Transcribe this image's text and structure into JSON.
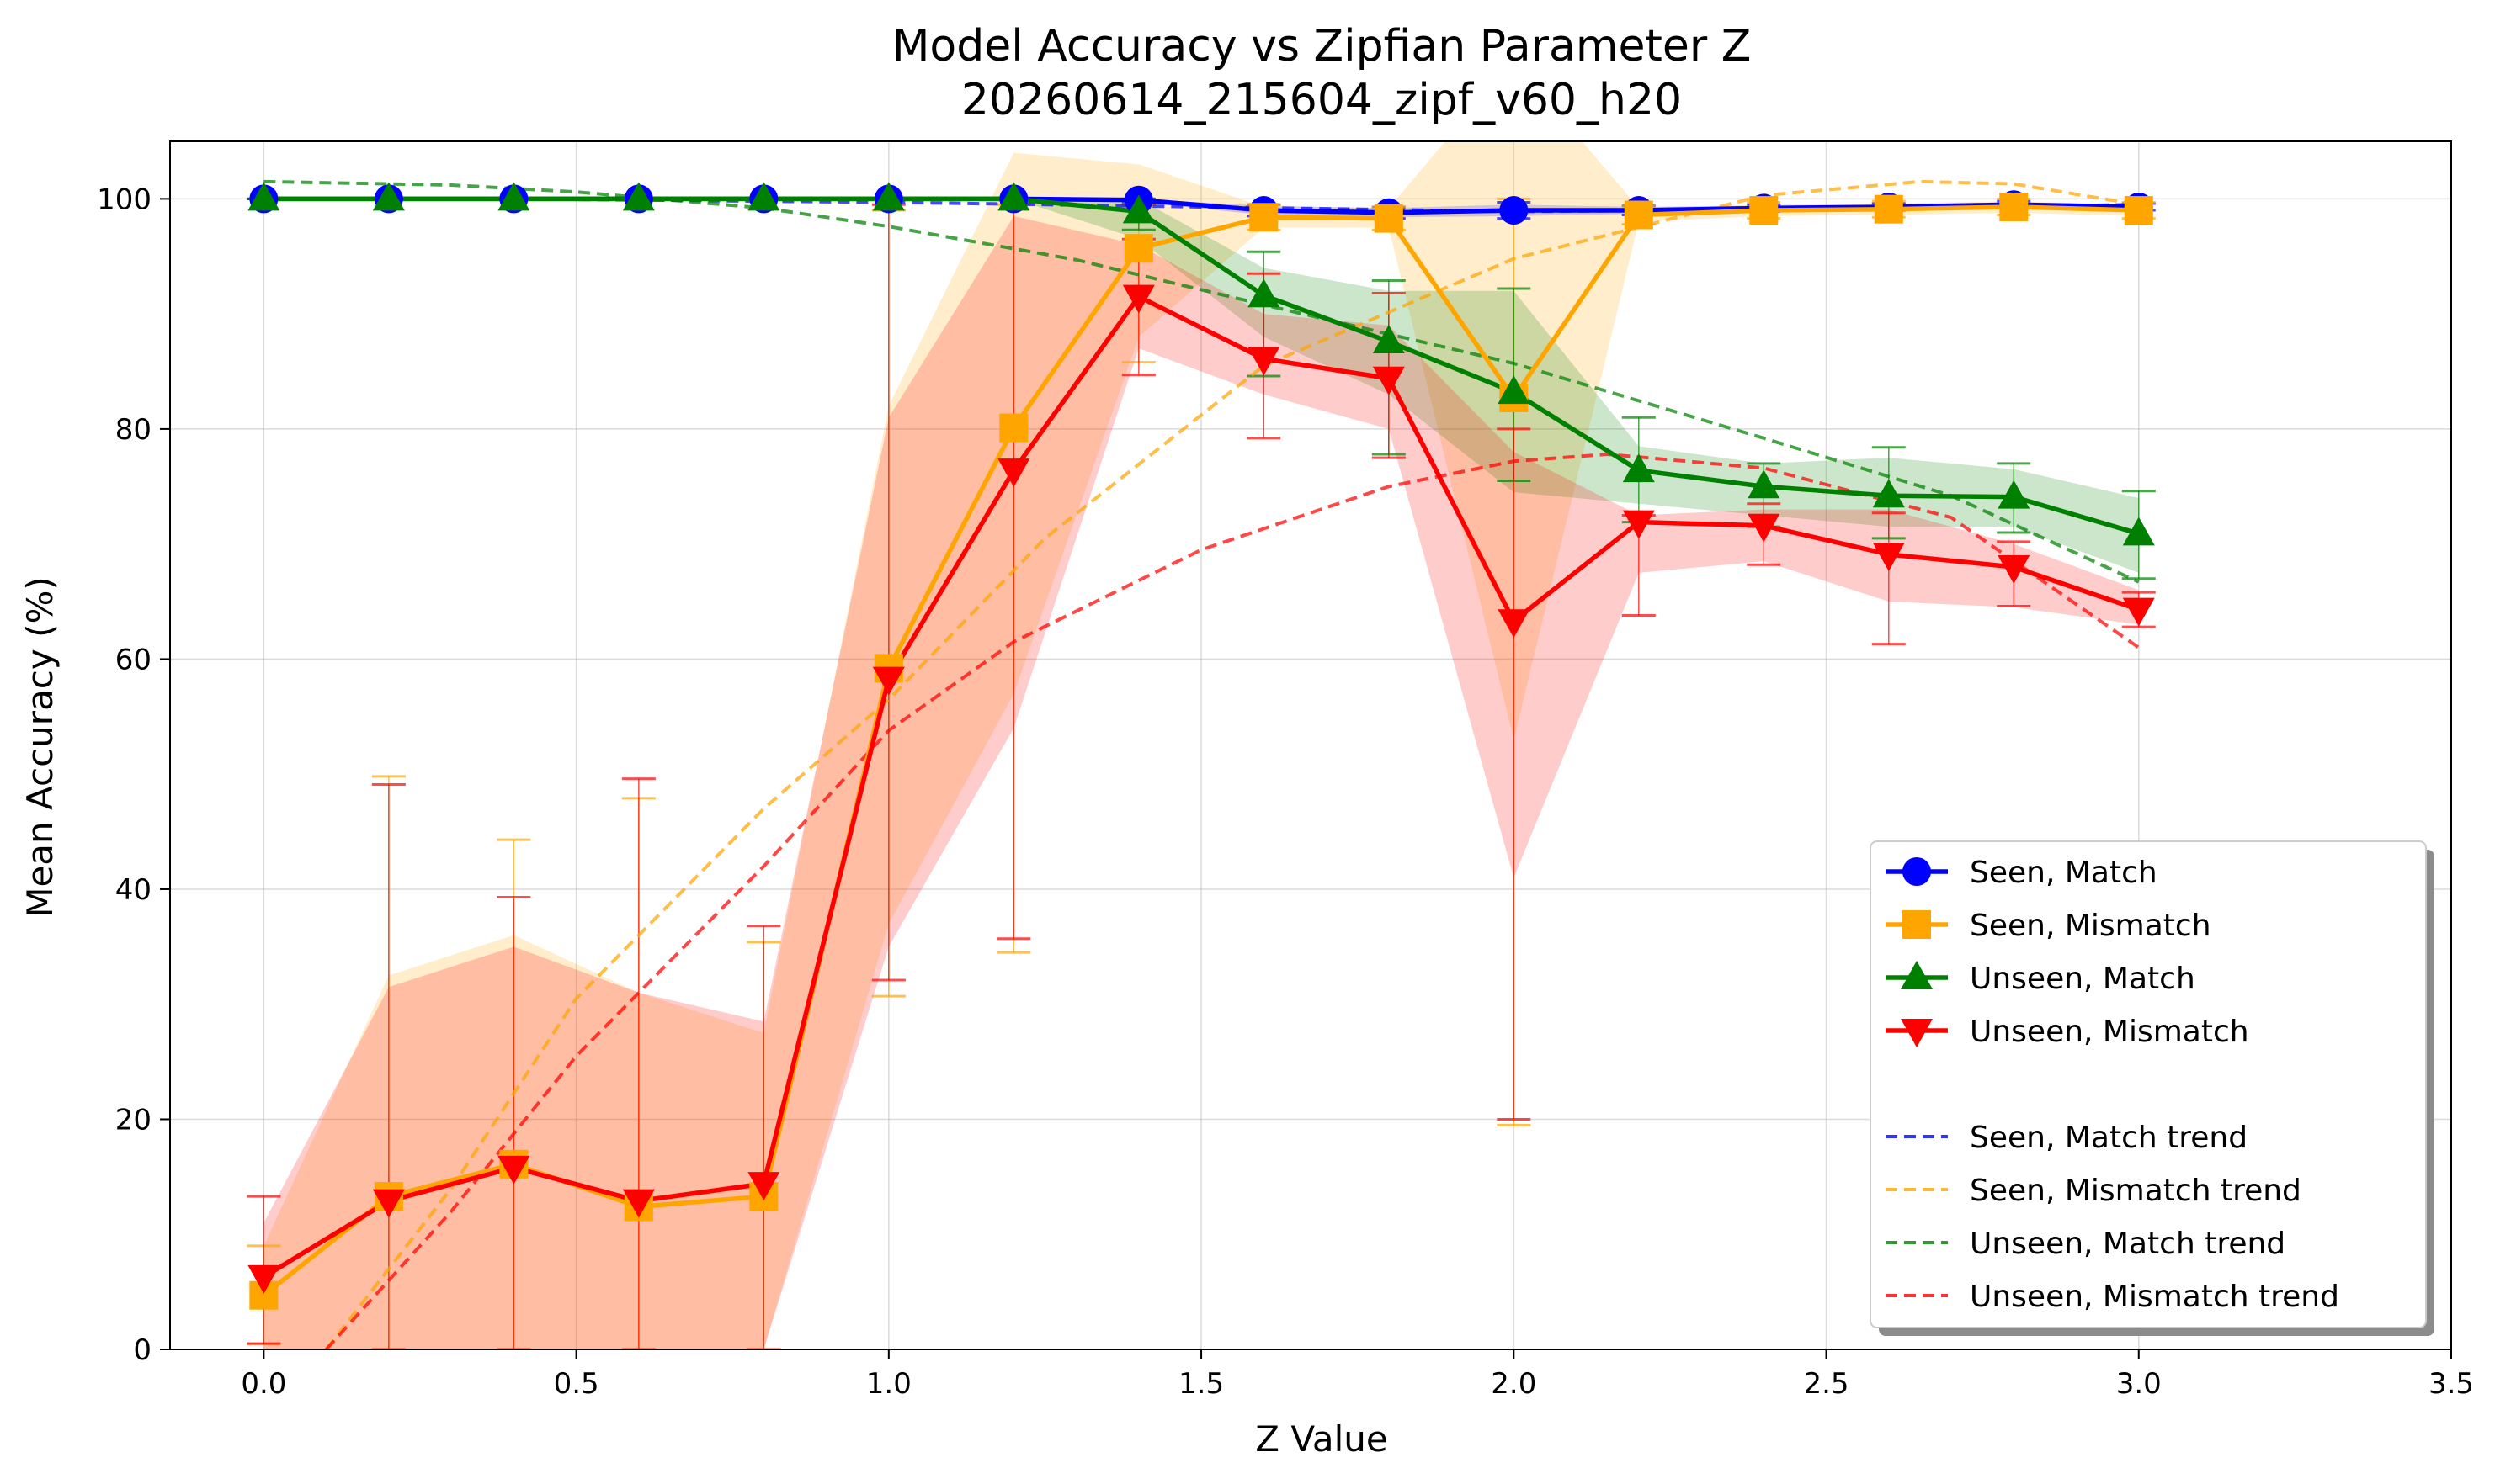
{
  "chart_data": {
    "type": "line",
    "title": "Model Accuracy vs Zipfian Parameter Z",
    "subtitle": "20260614_215604_zipf_v60_h20",
    "xlabel": "Z Value",
    "ylabel": "Mean Accuracy (%)",
    "xlim": [
      -0.15,
      3.5
    ],
    "ylim": [
      0,
      105
    ],
    "xticks": [
      0.0,
      0.5,
      1.0,
      1.5,
      2.0,
      2.5,
      3.0,
      3.5
    ],
    "xtick_labels": [
      "0.0",
      "0.5",
      "1.0",
      "1.5",
      "2.0",
      "2.5",
      "3.0",
      "3.5"
    ],
    "yticks": [
      0,
      20,
      40,
      60,
      80,
      100
    ],
    "ytick_labels": [
      "0",
      "20",
      "40",
      "60",
      "80",
      "100"
    ],
    "grid": true,
    "legend_position": "lower-right",
    "x": [
      0.0,
      0.2,
      0.4,
      0.6,
      0.8,
      1.0,
      1.2,
      1.4,
      1.6,
      1.8,
      2.0,
      2.2,
      2.4,
      2.6,
      2.8,
      3.0
    ],
    "series": [
      {
        "name": "Seen, Match",
        "color": "#0000ff",
        "marker": "circle",
        "values": [
          100,
          100,
          100,
          100,
          100,
          100,
          100,
          99.9,
          99.0,
          98.8,
          99.0,
          99.0,
          99.2,
          99.3,
          99.5,
          99.3
        ],
        "band_low": [
          100,
          100,
          100,
          100,
          100,
          100,
          100,
          99.7,
          98.6,
          98.4,
          98.5,
          98.7,
          99.0,
          99.1,
          99.3,
          99.1
        ],
        "band_high": [
          100,
          100,
          100,
          100,
          100,
          100,
          100,
          100,
          99.4,
          99.2,
          99.5,
          99.3,
          99.4,
          99.5,
          99.7,
          99.5
        ],
        "err_low": [
          100,
          100,
          100,
          100,
          100,
          100,
          100,
          99.6,
          98.5,
          98.3,
          98.3,
          98.6,
          98.9,
          99.0,
          99.2,
          99.0
        ],
        "err_high": [
          100,
          100,
          100,
          100,
          100,
          100,
          100,
          100,
          99.5,
          99.3,
          99.7,
          99.4,
          99.5,
          99.6,
          99.8,
          99.6
        ],
        "trend": [
          [
            0.0,
            100
          ],
          [
            0.5,
            99.95
          ],
          [
            1.0,
            99.7
          ],
          [
            1.5,
            99.3
          ],
          [
            2.0,
            98.9
          ],
          [
            2.5,
            99.1
          ],
          [
            3.0,
            99.5
          ]
        ]
      },
      {
        "name": "Seen, Mismatch",
        "color": "#ffa500",
        "marker": "square",
        "values": [
          4.7,
          13.3,
          16.1,
          12.4,
          13.3,
          59.2,
          80.1,
          95.7,
          98.4,
          98.3,
          82.7,
          98.6,
          99.0,
          99.1,
          99.3,
          99.0
        ],
        "band_low": [
          0,
          0,
          0,
          0,
          0,
          37,
          57,
          88,
          97.5,
          97.5,
          53,
          98,
          98.5,
          98.6,
          98.8,
          98.5
        ],
        "band_high": [
          9,
          32.5,
          36,
          31,
          27.5,
          82,
          104,
          103,
          99.3,
          99.2,
          112,
          99.2,
          99.5,
          99.6,
          99.8,
          99.5
        ],
        "err_low": [
          0.5,
          0,
          0,
          0,
          0,
          30.7,
          34.5,
          85.8,
          97.3,
          97.3,
          19.5,
          97.8,
          98.3,
          98.4,
          98.6,
          98.3
        ],
        "err_high": [
          9.0,
          49.8,
          44.3,
          47.9,
          35.4,
          99.0,
          99.5,
          99.5,
          99.5,
          99.3,
          100,
          99.4,
          99.7,
          99.8,
          100,
          99.7
        ],
        "trend": [
          [
            0.1,
            0
          ],
          [
            0.3,
            14
          ],
          [
            0.5,
            30.5
          ],
          [
            0.8,
            47
          ],
          [
            1.0,
            56.5
          ],
          [
            1.25,
            70.5
          ],
          [
            1.6,
            85.5
          ],
          [
            2.0,
            94.8
          ],
          [
            2.4,
            100.3
          ],
          [
            2.65,
            101.5
          ],
          [
            2.8,
            101.3
          ],
          [
            3.0,
            99.5
          ]
        ]
      },
      {
        "name": "Unseen, Match",
        "color": "#008000",
        "marker": "triangle-up",
        "values": [
          100,
          100,
          100,
          100,
          100,
          100,
          100,
          98.9,
          91.6,
          87.6,
          83.2,
          76.4,
          75.0,
          74.2,
          74.1,
          70.9
        ],
        "band_low": [
          100,
          100,
          100,
          100,
          100,
          100,
          100,
          96.5,
          88,
          83,
          74.5,
          73.5,
          72.5,
          71.5,
          71.5,
          67.5
        ],
        "band_high": [
          100,
          100,
          100,
          100,
          100,
          100,
          100,
          100,
          94,
          92,
          92,
          78.5,
          77,
          77.5,
          76.5,
          74
        ],
        "err_low": [
          100,
          100,
          100,
          100,
          100,
          100,
          100,
          97.3,
          84.6,
          77.8,
          75.5,
          71.9,
          71.5,
          70.5,
          71.0,
          67.0
        ],
        "err_high": [
          100,
          100,
          100,
          100,
          100,
          100,
          100,
          100,
          95.4,
          92.9,
          92.2,
          81.0,
          77.0,
          78.4,
          77.0,
          74.6
        ],
        "trend": [
          [
            0.0,
            101.5
          ],
          [
            0.3,
            101.2
          ],
          [
            0.5,
            100.6
          ],
          [
            0.8,
            99.2
          ],
          [
            1.0,
            97.6
          ],
          [
            1.3,
            94.7
          ],
          [
            1.6,
            90.8
          ],
          [
            2.0,
            85.7
          ],
          [
            2.4,
            79.2
          ],
          [
            2.7,
            74.2
          ],
          [
            3.0,
            66.7
          ]
        ]
      },
      {
        "name": "Unseen, Mismatch",
        "color": "#ff0000",
        "marker": "triangle-down",
        "values": [
          6.3,
          12.9,
          15.8,
          12.9,
          14.4,
          58.3,
          76.4,
          91.5,
          86.1,
          84.4,
          63.3,
          71.9,
          71.6,
          69.1,
          68.0,
          64.3
        ],
        "band_low": [
          0,
          0,
          0,
          0,
          0,
          35,
          54,
          87,
          83,
          80,
          41,
          67.5,
          68.5,
          65,
          64.5,
          63
        ],
        "band_high": [
          11,
          31.5,
          35,
          31,
          28.5,
          81,
          98.5,
          96,
          90,
          89,
          78,
          72.5,
          73,
          73,
          70,
          66
        ],
        "err_low": [
          0.5,
          0,
          0,
          0,
          0,
          32.1,
          35.7,
          84.7,
          79.2,
          77.5,
          20.0,
          63.8,
          68.2,
          61.3,
          64.6,
          62.8
        ],
        "err_high": [
          13.3,
          49.1,
          39.3,
          49.6,
          36.8,
          99.5,
          100,
          96.5,
          93.5,
          91.8,
          80.0,
          72.5,
          73.5,
          72.7,
          70.2,
          65.8
        ],
        "trend": [
          [
            0.1,
            0
          ],
          [
            0.3,
            12
          ],
          [
            0.5,
            25.5
          ],
          [
            0.8,
            42
          ],
          [
            1.0,
            53.8
          ],
          [
            1.2,
            61.5
          ],
          [
            1.5,
            69.5
          ],
          [
            1.8,
            75
          ],
          [
            2.0,
            77.2
          ],
          [
            2.15,
            77.8
          ],
          [
            2.4,
            76.6
          ],
          [
            2.7,
            72.3
          ],
          [
            3.0,
            61
          ]
        ]
      }
    ],
    "legend_entries": [
      {
        "label": "Seen, Match",
        "color": "#0000ff",
        "kind": "line",
        "marker": "circle"
      },
      {
        "label": "Seen, Mismatch",
        "color": "#ffa500",
        "kind": "line",
        "marker": "square"
      },
      {
        "label": "Unseen, Match",
        "color": "#008000",
        "kind": "line",
        "marker": "triangle-up"
      },
      {
        "label": "Unseen, Mismatch",
        "color": "#ff0000",
        "kind": "line",
        "marker": "triangle-down"
      },
      {
        "label": "Seen, Match trend",
        "color": "#3333ff",
        "kind": "dashed"
      },
      {
        "label": "Seen, Mismatch trend",
        "color": "#ffb833",
        "kind": "dashed"
      },
      {
        "label": "Unseen, Match trend",
        "color": "#339933",
        "kind": "dashed"
      },
      {
        "label": "Unseen, Mismatch trend",
        "color": "#ff3333",
        "kind": "dashed"
      }
    ]
  }
}
